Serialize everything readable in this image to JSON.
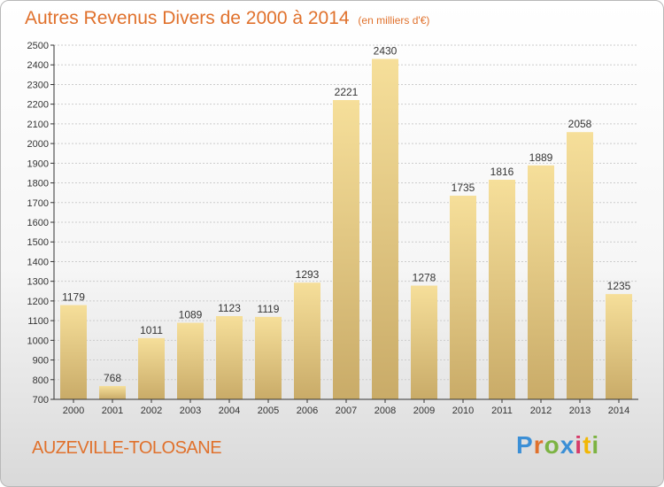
{
  "title": "Autres Revenus Divers de 2000 à 2014",
  "subtitle": "(en milliers d'€)",
  "commune": "AUZEVILLE-TOLOSANE",
  "brand": "Proxiti",
  "colors": {
    "title": "#e0712c",
    "bar_light": "#f6df9a",
    "bar_dark": "#c9ab68",
    "axis": "#333333",
    "grid": "#cccccc"
  },
  "chart_data": {
    "type": "bar",
    "title": "Autres Revenus Divers de 2000 à 2014",
    "subtitle": "(en milliers d'€)",
    "xlabel": "",
    "ylabel": "",
    "categories": [
      "2000",
      "2001",
      "2002",
      "2003",
      "2004",
      "2005",
      "2006",
      "2007",
      "2008",
      "2009",
      "2010",
      "2011",
      "2012",
      "2013",
      "2014"
    ],
    "values": [
      1179,
      768,
      1011,
      1089,
      1123,
      1119,
      1293,
      2221,
      2430,
      1278,
      1735,
      1816,
      1889,
      2058,
      1235
    ],
    "ylim": [
      700,
      2500
    ],
    "yticks": [
      700,
      800,
      900,
      1000,
      1100,
      1200,
      1300,
      1400,
      1500,
      1600,
      1700,
      1800,
      1900,
      2000,
      2100,
      2200,
      2300,
      2400,
      2500
    ],
    "grid": true,
    "legend": "none"
  }
}
